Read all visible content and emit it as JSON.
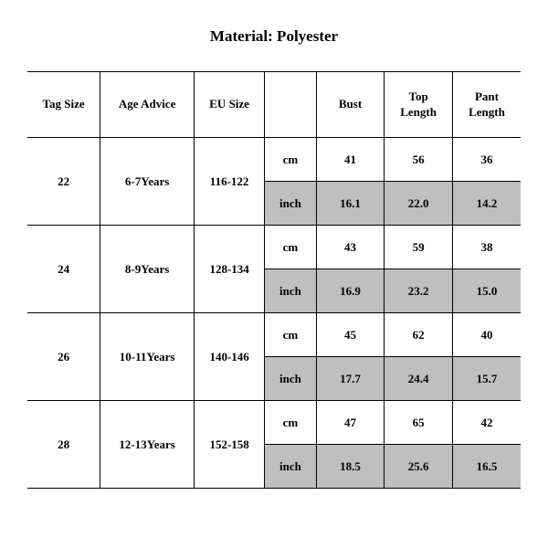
{
  "title": "Material: Polyester",
  "table": {
    "columns": [
      "Tag Size",
      "Age Advice",
      "EU Size",
      "",
      "Bust",
      "Top\nLength",
      "Pant\nLength"
    ],
    "col_widths_class": [
      "sizecol",
      "agecol",
      "eucol",
      "unitcol",
      "mcol",
      "mcol",
      "mcol"
    ],
    "unit_labels": {
      "cm": "cm",
      "inch": "inch"
    },
    "rows": [
      {
        "tag": "22",
        "age": "6-7Years",
        "eu": "116-122",
        "cm": [
          "41",
          "56",
          "36"
        ],
        "inch": [
          "16.1",
          "22.0",
          "14.2"
        ]
      },
      {
        "tag": "24",
        "age": "8-9Years",
        "eu": "128-134",
        "cm": [
          "43",
          "59",
          "38"
        ],
        "inch": [
          "16.9",
          "23.2",
          "15.0"
        ]
      },
      {
        "tag": "26",
        "age": "10-11Years",
        "eu": "140-146",
        "cm": [
          "45",
          "62",
          "40"
        ],
        "inch": [
          "17.7",
          "24.4",
          "15.7"
        ]
      },
      {
        "tag": "28",
        "age": "12-13Years",
        "eu": "152-158",
        "cm": [
          "47",
          "65",
          "42"
        ],
        "inch": [
          "18.5",
          "25.6",
          "16.5"
        ]
      }
    ],
    "shade_color": "#bfbfbf",
    "border_color": "#000000",
    "background": "#ffffff",
    "font_family": "Times New Roman",
    "header_fontsize": 13,
    "title_fontsize": 17
  }
}
